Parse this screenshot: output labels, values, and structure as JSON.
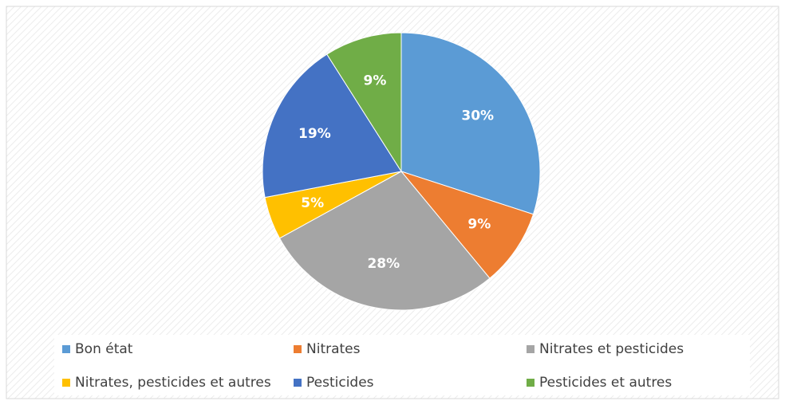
{
  "chart_data": {
    "type": "pie",
    "categories": [
      "Bon état",
      "Nitrates",
      "Nitrates et pesticides",
      "Nitrates, pesticides et autres",
      "Pesticides",
      "Pesticides et autres"
    ],
    "values": [
      30,
      9,
      28,
      5,
      19,
      9
    ],
    "value_labels": [
      "30%",
      "9%",
      "28%",
      "5%",
      "19%",
      "9%"
    ],
    "colors": [
      "#5b9bd5",
      "#ed7d31",
      "#a5a5a5",
      "#ffc000",
      "#4472c4",
      "#70ad47"
    ],
    "legend": "bottom"
  }
}
